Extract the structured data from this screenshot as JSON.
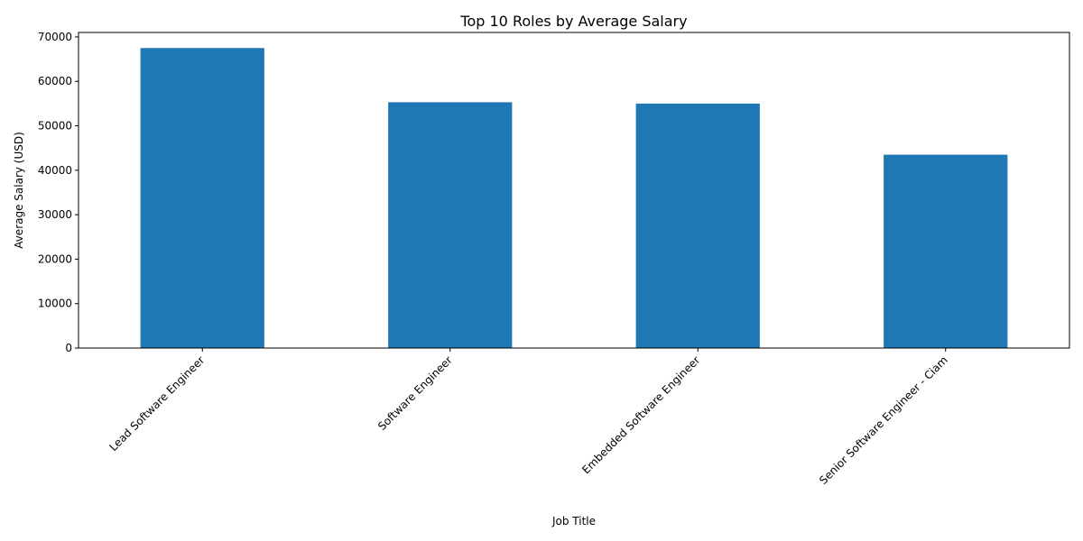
{
  "chart_data": {
    "type": "bar",
    "title": "Top 10 Roles by Average Salary",
    "xlabel": "Job Title",
    "ylabel": "Average Salary (USD)",
    "categories": [
      "Lead Software Engineer",
      "Software Engineer",
      "Embedded Software Engineer",
      "Senior Software Engineer - Ciam"
    ],
    "values": [
      67500,
      55300,
      55000,
      43500
    ],
    "ylim": [
      0,
      71000
    ],
    "yticks": [
      0,
      10000,
      20000,
      30000,
      40000,
      50000,
      60000,
      70000
    ],
    "bar_color": "#1f77b4",
    "grid": false,
    "legend": false
  }
}
